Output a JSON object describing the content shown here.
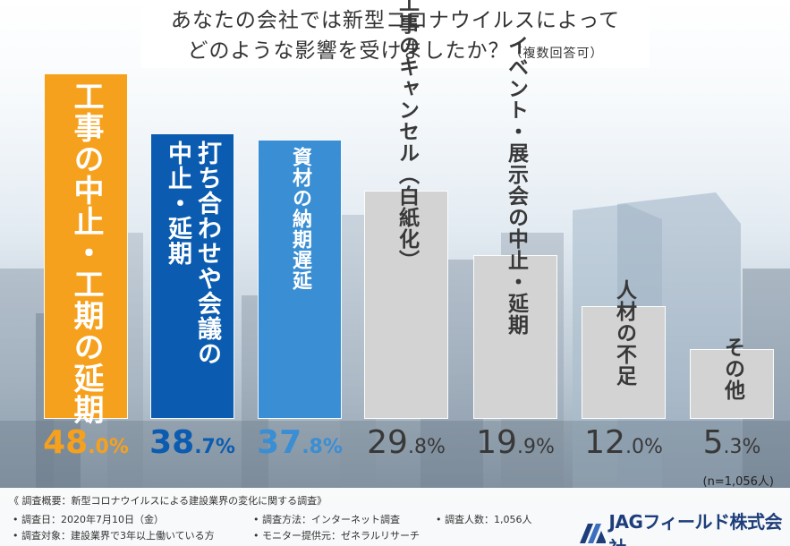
{
  "title": {
    "line1": "あなたの会社では新型コロナウイルスによって",
    "line2": "どのような影響を受けましたか？",
    "sub": "（複数回答可）"
  },
  "colors": {
    "orange": "#f6a11d",
    "dark_blue": "#0b5cb0",
    "mid_blue": "#3a8ed3",
    "gray_bar": "#d3d3d3",
    "gray_text": "#383838"
  },
  "chart_data": {
    "type": "bar",
    "title": "あなたの会社では新型コロナウイルスによって どのような影響を受けましたか？（複数回答可）",
    "unit": "%",
    "ylim": [
      0,
      50
    ],
    "categories": [
      "工事の中止・工期の延期",
      "打ち合わせや会議の中止・延期",
      "資材の納期遅延",
      "工事のキャンセル（白紙化）",
      "イベント・展示会の中止・延期",
      "人材の不足",
      "その他"
    ],
    "values": [
      48.0,
      38.7,
      37.8,
      29.8,
      19.9,
      12.0,
      5.3
    ],
    "label_lines": [
      [
        "工事の中止・工期の延期"
      ],
      [
        "打ち合わせや会議の",
        "中止・延期"
      ],
      [
        "資材の納期遅延"
      ],
      [
        "工事のキャンセル（白紙化）"
      ],
      [
        "イベント・展示会の中止・延期"
      ],
      [
        "人材の不足"
      ],
      [
        "その他"
      ]
    ],
    "pct_int": [
      "48",
      "38",
      "37",
      "29",
      "19",
      "12",
      "5"
    ],
    "pct_dec": [
      ".0%",
      ".7%",
      ".8%",
      ".8%",
      ".9%",
      ".0%",
      ".3%"
    ],
    "n_note": "(n=1,056人)"
  },
  "footer": {
    "heading": "《 調査概要：新型コロナウイルスによる建設業界の変化に関する調査》",
    "date": "• 調査日：2020年7月10日（金）",
    "method": "• 調査方法：インターネット調査",
    "count": "• 調査人数：1,056人",
    "target": "• 調査対象：建設業界で3年以上働いている方",
    "monitor": "• モニター提供元：ゼネラルリサーチ",
    "logo_text": "JAGフィールド株式会社"
  }
}
